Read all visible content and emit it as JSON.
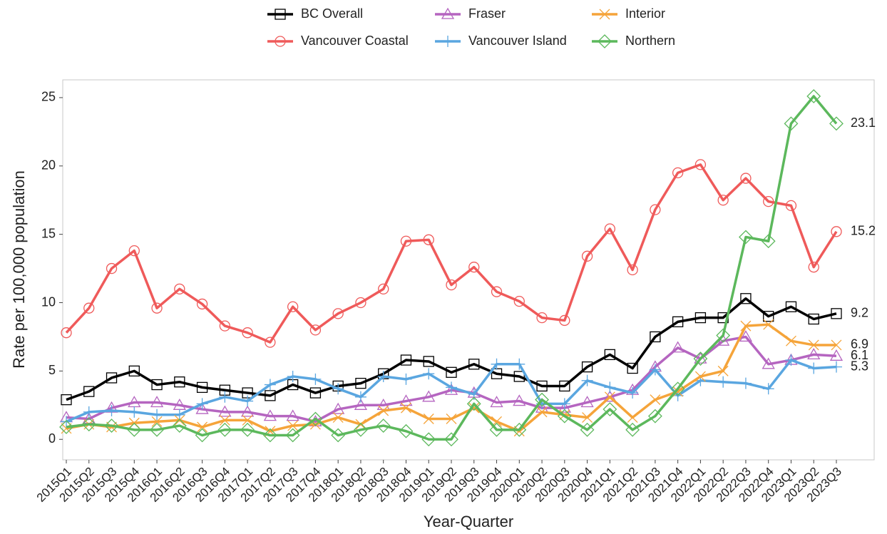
{
  "chart_data": {
    "type": "line",
    "x_label": "Year-Quarter",
    "y_label": "Rate per 100,000 population",
    "categories": [
      "2015Q1",
      "2015Q2",
      "2015Q3",
      "2015Q4",
      "2016Q1",
      "2016Q2",
      "2016Q3",
      "2016Q4",
      "2017Q1",
      "2017Q2",
      "2017Q3",
      "2017Q4",
      "2018Q1",
      "2018Q2",
      "2018Q3",
      "2018Q4",
      "2019Q1",
      "2019Q2",
      "2019Q3",
      "2019Q4",
      "2020Q1",
      "2020Q2",
      "2020Q3",
      "2020Q4",
      "2021Q1",
      "2021Q2",
      "2021Q3",
      "2021Q4",
      "2022Q1",
      "2022Q2",
      "2022Q3",
      "2022Q4",
      "2023Q1",
      "2023Q2",
      "2023Q3"
    ],
    "ylim": [
      -1.5,
      26.3
    ],
    "yticks": [
      0,
      5,
      10,
      15,
      20,
      25
    ],
    "series": [
      {
        "name": "BC Overall",
        "color": "#000000",
        "marker": "square",
        "values": [
          2.9,
          3.5,
          4.5,
          5.0,
          4.0,
          4.2,
          3.8,
          3.6,
          3.4,
          3.2,
          4.0,
          3.4,
          3.9,
          4.1,
          4.8,
          5.8,
          5.7,
          4.9,
          5.5,
          4.8,
          4.6,
          3.9,
          3.9,
          5.3,
          6.2,
          5.2,
          7.5,
          8.6,
          8.9,
          8.9,
          10.3,
          9.0,
          9.7,
          8.8,
          9.2
        ]
      },
      {
        "name": "Vancouver Coastal",
        "color": "#ef5a5a",
        "marker": "circle",
        "values": [
          7.8,
          9.6,
          12.5,
          13.8,
          9.6,
          11.0,
          9.9,
          8.3,
          7.8,
          7.1,
          9.7,
          8.0,
          9.2,
          10.0,
          11.0,
          14.5,
          14.6,
          11.3,
          12.6,
          10.8,
          10.1,
          8.9,
          8.7,
          13.4,
          15.4,
          12.4,
          16.8,
          19.5,
          20.1,
          17.5,
          19.1,
          17.4,
          17.1,
          12.6,
          15.2
        ]
      },
      {
        "name": "Fraser",
        "color": "#b565c0",
        "marker": "triangle",
        "values": [
          1.6,
          1.5,
          2.3,
          2.7,
          2.7,
          2.5,
          2.2,
          2.0,
          2.0,
          1.7,
          1.7,
          1.3,
          2.2,
          2.5,
          2.5,
          2.8,
          3.1,
          3.6,
          3.4,
          2.7,
          2.8,
          2.3,
          2.3,
          2.7,
          3.1,
          3.6,
          5.3,
          6.7,
          5.9,
          7.2,
          7.5,
          5.5,
          5.8,
          6.2,
          6.1
        ]
      },
      {
        "name": "Vancouver Island",
        "color": "#5aa6e0",
        "marker": "plus",
        "values": [
          1.3,
          2.0,
          2.1,
          2.0,
          1.8,
          1.8,
          2.6,
          3.1,
          2.8,
          4.0,
          4.6,
          4.4,
          3.7,
          3.1,
          4.6,
          4.4,
          4.8,
          3.8,
          3.3,
          5.5,
          5.5,
          2.6,
          2.6,
          4.3,
          3.8,
          3.4,
          5.1,
          3.2,
          4.3,
          4.2,
          4.1,
          3.7,
          5.8,
          5.2,
          5.3
        ]
      },
      {
        "name": "Interior",
        "color": "#f5a43a",
        "marker": "cross",
        "values": [
          0.8,
          1.1,
          0.9,
          1.2,
          1.3,
          1.4,
          0.9,
          1.4,
          1.4,
          0.6,
          1.0,
          1.1,
          1.6,
          1.1,
          2.1,
          2.3,
          1.5,
          1.5,
          2.3,
          1.3,
          0.6,
          2.0,
          1.8,
          1.6,
          3.1,
          1.6,
          2.9,
          3.5,
          4.6,
          5.0,
          8.3,
          8.4,
          7.2,
          6.9,
          6.9
        ]
      },
      {
        "name": "Northern",
        "color": "#5cb85c",
        "marker": "diamond",
        "values": [
          0.9,
          1.1,
          1.0,
          0.7,
          0.7,
          1.0,
          0.3,
          0.7,
          0.7,
          0.3,
          0.3,
          1.5,
          0.3,
          0.7,
          1.0,
          0.6,
          0.0,
          0.0,
          2.6,
          0.7,
          0.7,
          2.9,
          1.7,
          0.7,
          2.2,
          0.7,
          1.7,
          3.7,
          5.9,
          7.6,
          14.8,
          14.5,
          23.1,
          25.1,
          23.1
        ]
      }
    ]
  }
}
